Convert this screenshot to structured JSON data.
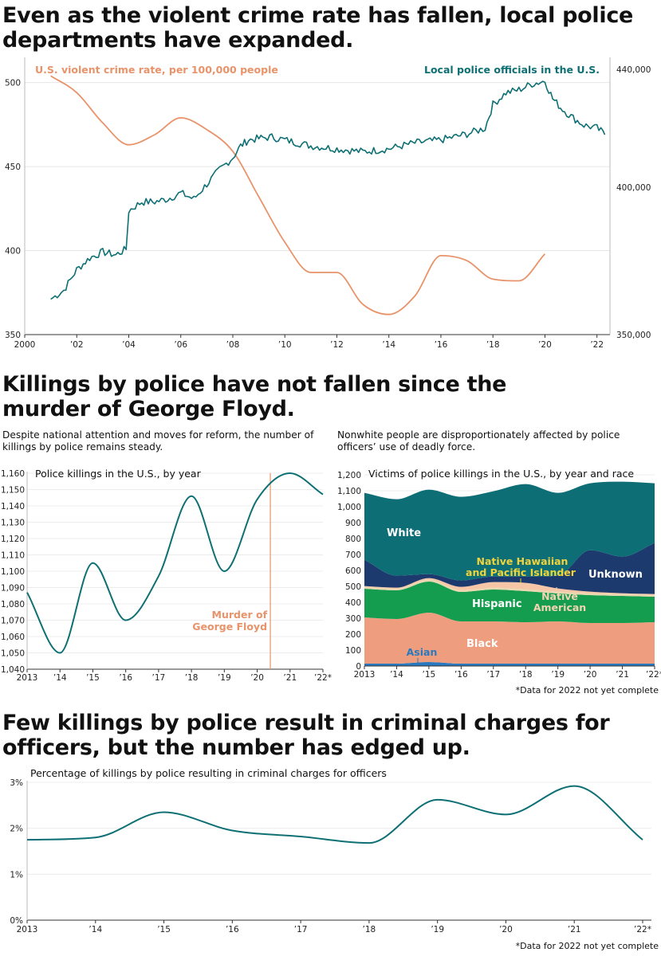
{
  "colors": {
    "orange": "#E8936A",
    "teal": "#0E7074",
    "white_area": "#0D6E76",
    "unknown_area": "#1C3A6E",
    "nhpi_area": "#F7C6A6",
    "hispanic_area": "#149D4E",
    "native_area": "#E9D7B0",
    "black_area": "#EE9E7E",
    "asian_area": "#2A79BE",
    "nhpi_label": "#F2D33C",
    "asian_label": "#2A79BE"
  },
  "headlines": {
    "h1": "Even as the violent crime rate has fallen, local police departments have expanded.",
    "h2": "Killings by police have not fallen since the murder of George Floyd.",
    "h3": "Few killings by police result in criminal charges for officers, but the number has edged up."
  },
  "subtexts": {
    "left": "Despite national attention and moves for reform, the number of killings by police remains steady.",
    "right": "Nonwhite people are disproportionately affected by police officers’ use of deadly force."
  },
  "notes": {
    "stack_note": "*Data for 2022 not yet complete",
    "charges_note": "*Data for 2022 not yet complete"
  },
  "chart_data": [
    {
      "id": "crime_vs_police",
      "type": "line",
      "x_tick_labels": [
        "2000",
        "’02",
        "’04",
        "’06",
        "’08",
        "’10",
        "’12",
        "’14",
        "’16",
        "’18",
        "’20",
        "’22"
      ],
      "xlim": [
        2000,
        2022.5
      ],
      "series": [
        {
          "name": "U.S. violent crime rate, per 100,000 people",
          "axis": "left",
          "ylim": [
            350,
            515
          ],
          "y_ticks": [
            350,
            400,
            450,
            500
          ],
          "y_tick_labels": [
            "350",
            "400",
            "450",
            "500"
          ],
          "points": [
            [
              2001,
              504
            ],
            [
              2002,
              494
            ],
            [
              2003,
              476
            ],
            [
              2004,
              463
            ],
            [
              2005,
              469
            ],
            [
              2006,
              479
            ],
            [
              2007,
              472
            ],
            [
              2008,
              459
            ],
            [
              2009,
              432
            ],
            [
              2010,
              405
            ],
            [
              2011,
              387
            ],
            [
              2012,
              387
            ],
            [
              2013,
              368
            ],
            [
              2014,
              362
            ],
            [
              2015,
              373
            ],
            [
              2016,
              397
            ],
            [
              2017,
              394
            ],
            [
              2018,
              383
            ],
            [
              2019,
              382
            ],
            [
              2020,
              398
            ]
          ]
        },
        {
          "name": "Local police officials in the U.S.",
          "axis": "right",
          "ylim": [
            350000,
            444000
          ],
          "y_ticks": [
            350000,
            400000,
            440000
          ],
          "y_tick_labels": [
            "350,000",
            "400,000",
            "440,000"
          ],
          "points": [
            [
              2001.0,
              362000
            ],
            [
              2001.5,
              365000
            ],
            [
              2002.0,
              372000
            ],
            [
              2002.5,
              376000
            ],
            [
              2003.0,
              378000
            ],
            [
              2003.5,
              377000
            ],
            [
              2003.9,
              379000
            ],
            [
              2004.0,
              392000
            ],
            [
              2004.5,
              395000
            ],
            [
              2005.0,
              395000
            ],
            [
              2005.5,
              396000
            ],
            [
              2006.0,
              398000
            ],
            [
              2006.5,
              396000
            ],
            [
              2007.0,
              401000
            ],
            [
              2007.5,
              406000
            ],
            [
              2008.0,
              410000
            ],
            [
              2008.3,
              414000
            ],
            [
              2008.6,
              416000
            ],
            [
              2009.0,
              416500
            ],
            [
              2009.5,
              417000
            ],
            [
              2010.0,
              416000
            ],
            [
              2011.0,
              414000
            ],
            [
              2012.0,
              413000
            ],
            [
              2013.0,
              412000
            ],
            [
              2014.0,
              413000
            ],
            [
              2015.0,
              415000
            ],
            [
              2016.0,
              416000
            ],
            [
              2017.0,
              418000
            ],
            [
              2017.7,
              420000
            ],
            [
              2018.0,
              428000
            ],
            [
              2018.5,
              432000
            ],
            [
              2019.0,
              433000
            ],
            [
              2019.5,
              435000
            ],
            [
              2020.0,
              436000
            ],
            [
              2020.3,
              430000
            ],
            [
              2020.6,
              427000
            ],
            [
              2021.0,
              424000
            ],
            [
              2021.5,
              421000
            ],
            [
              2022.0,
              420000
            ],
            [
              2022.3,
              418000
            ]
          ]
        }
      ]
    },
    {
      "id": "killings_by_year",
      "type": "line",
      "title": "Police killings in the U.S., by year",
      "categories": [
        "2013",
        "’14",
        "’15",
        "’16",
        "’17",
        "’18",
        "’19",
        "’20",
        "’21",
        "’22*"
      ],
      "x": [
        2013,
        2014,
        2015,
        2016,
        2017,
        2018,
        2019,
        2020,
        2021,
        2022
      ],
      "values": [
        1087,
        1050,
        1105,
        1070,
        1097,
        1146,
        1100,
        1144,
        1160,
        1147
      ],
      "ylim": [
        1040,
        1160
      ],
      "y_ticks": [
        1040,
        1050,
        1060,
        1070,
        1080,
        1090,
        1100,
        1110,
        1120,
        1130,
        1140,
        1150,
        1160
      ],
      "y_tick_labels": [
        "1,040",
        "1,050",
        "1,060",
        "1,070",
        "1,080",
        "1,090",
        "1,100",
        "1,110",
        "1,120",
        "1,130",
        "1,140",
        "1,150",
        "1,160"
      ],
      "annotation": {
        "x": 2020.4,
        "label_line1": "Murder of",
        "label_line2": "George Floyd"
      }
    },
    {
      "id": "victims_by_race",
      "type": "area",
      "stacked": true,
      "title": "Victims of police killings in the U.S., by year and race",
      "categories": [
        "2013",
        "’14",
        "’15",
        "’16",
        "’17",
        "’18",
        "’19",
        "’20",
        "’21",
        "’22*"
      ],
      "x": [
        2013,
        2014,
        2015,
        2016,
        2017,
        2018,
        2019,
        2020,
        2021,
        2022
      ],
      "ylim": [
        0,
        1200
      ],
      "y_ticks": [
        0,
        100,
        200,
        300,
        400,
        500,
        600,
        700,
        800,
        900,
        1000,
        1100,
        1200
      ],
      "y_tick_labels": [
        "0",
        "100",
        "200",
        "300",
        "400",
        "500",
        "600",
        "700",
        "800",
        "900",
        "1,000",
        "1,100",
        "1,200"
      ],
      "series": [
        {
          "name": "Asian",
          "label": "Asian",
          "values": [
            15,
            15,
            25,
            15,
            15,
            15,
            15,
            15,
            15,
            15
          ]
        },
        {
          "name": "Black",
          "label": "Black",
          "values": [
            290,
            280,
            310,
            265,
            265,
            260,
            265,
            255,
            255,
            260
          ]
        },
        {
          "name": "Hispanic",
          "label": "Hispanic",
          "values": [
            180,
            180,
            195,
            185,
            200,
            195,
            175,
            175,
            170,
            160
          ]
        },
        {
          "name": "Native American",
          "label_line1": "Native",
          "label_line2": "American",
          "values": [
            12,
            12,
            12,
            12,
            12,
            12,
            12,
            12,
            12,
            12
          ]
        },
        {
          "name": "Native Hawaiian and Pacific Islander",
          "label_line1": "Native Hawaiian",
          "label_line2": "and Pacific Islander",
          "values": [
            5,
            5,
            10,
            20,
            35,
            40,
            20,
            10,
            5,
            5
          ]
        },
        {
          "name": "Unknown",
          "label": "Unknown",
          "values": [
            165,
            75,
            25,
            40,
            35,
            40,
            80,
            260,
            230,
            320
          ]
        },
        {
          "name": "White",
          "label": "White",
          "values": [
            420,
            480,
            530,
            525,
            535,
            580,
            520,
            420,
            470,
            375
          ]
        }
      ]
    },
    {
      "id": "charges_pct",
      "type": "line",
      "title": "Percentage of killings by police resulting in criminal charges for officers",
      "categories": [
        "2013",
        "’14",
        "’15",
        "’16",
        "’17",
        "’18",
        "’19",
        "’20",
        "’21",
        "’22*"
      ],
      "x": [
        2013,
        2014,
        2015,
        2016,
        2017,
        2018,
        2019,
        2020,
        2021,
        2022
      ],
      "values": [
        1.75,
        1.8,
        2.35,
        1.95,
        1.82,
        1.68,
        2.62,
        2.3,
        2.92,
        1.75
      ],
      "ylim": [
        0,
        3
      ],
      "y_ticks": [
        0,
        1,
        2,
        3
      ],
      "y_tick_labels": [
        "0%",
        "1%",
        "2%",
        "3%"
      ]
    }
  ]
}
